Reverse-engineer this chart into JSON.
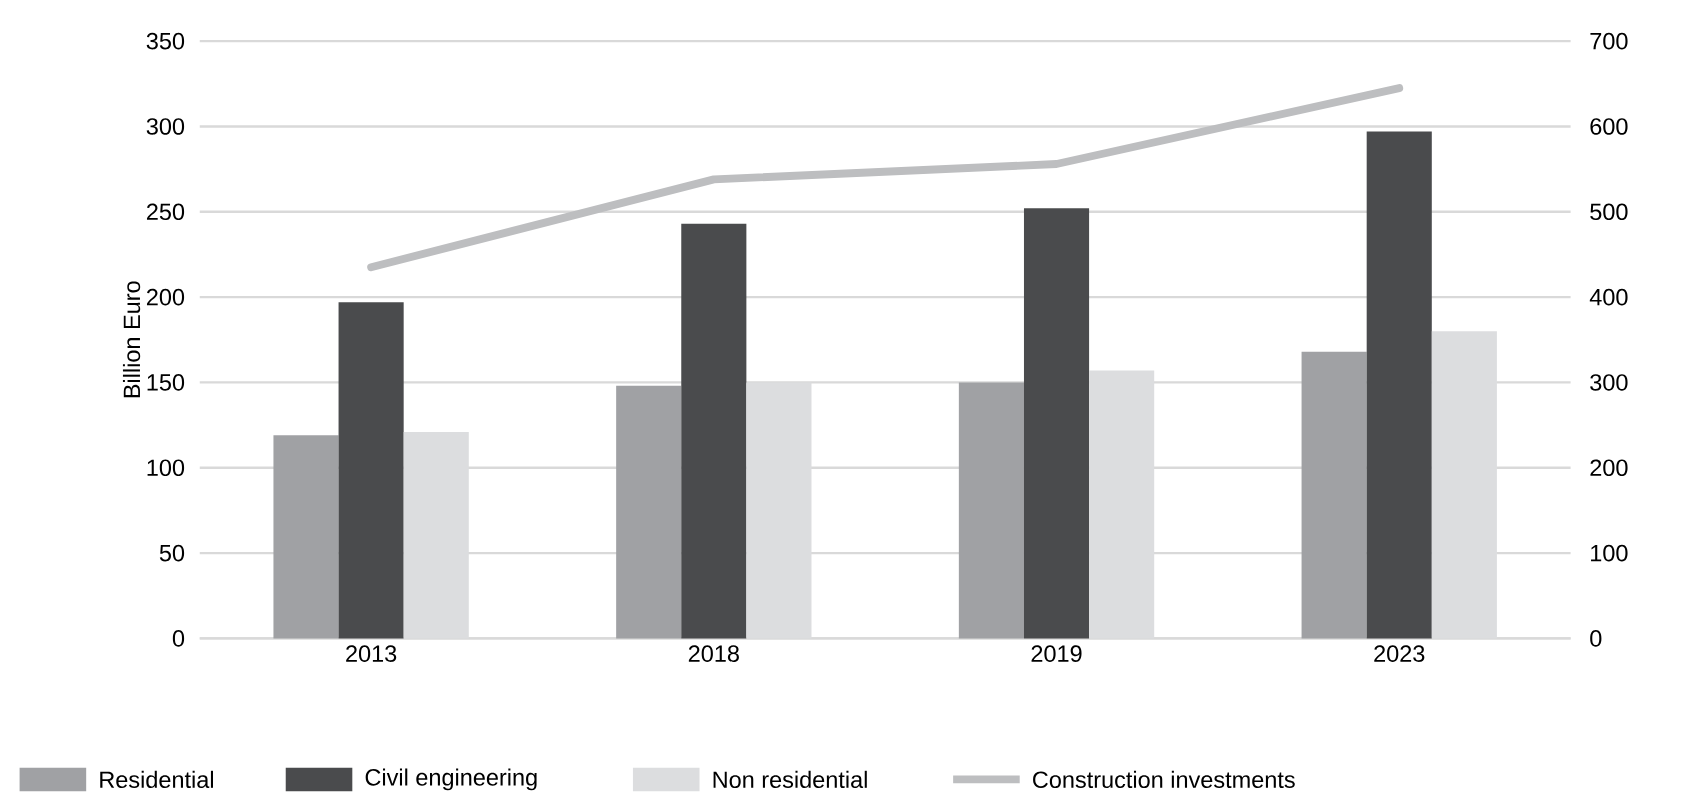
{
  "chart_data": {
    "type": "bar",
    "ylabel": "Billion Euro",
    "categories": [
      "2013",
      "2018",
      "2019",
      "2023"
    ],
    "series": [
      {
        "name": "Residential",
        "color": "#a0a1a4",
        "values": [
          119,
          148,
          150,
          168
        ]
      },
      {
        "name": "Civil engineering",
        "color": "#4a4b4d",
        "values": [
          197,
          243,
          252,
          297
        ]
      },
      {
        "name": "Non residential",
        "color": "#dcdddf",
        "values": [
          121,
          150,
          157,
          180
        ]
      },
      {
        "name": "Construction investments",
        "type": "line",
        "axis": "y2",
        "color": "#bdbec0",
        "values": [
          435,
          538,
          556,
          645
        ]
      }
    ],
    "ylim": [
      0,
      350
    ],
    "yticks": [
      0,
      50,
      100,
      150,
      200,
      250,
      300,
      350
    ],
    "y2lim": [
      0,
      700
    ],
    "y2ticks": [
      0,
      100,
      200,
      300,
      400,
      500,
      600,
      700
    ],
    "grid": "y",
    "legend": "bottom",
    "marker": "none"
  }
}
